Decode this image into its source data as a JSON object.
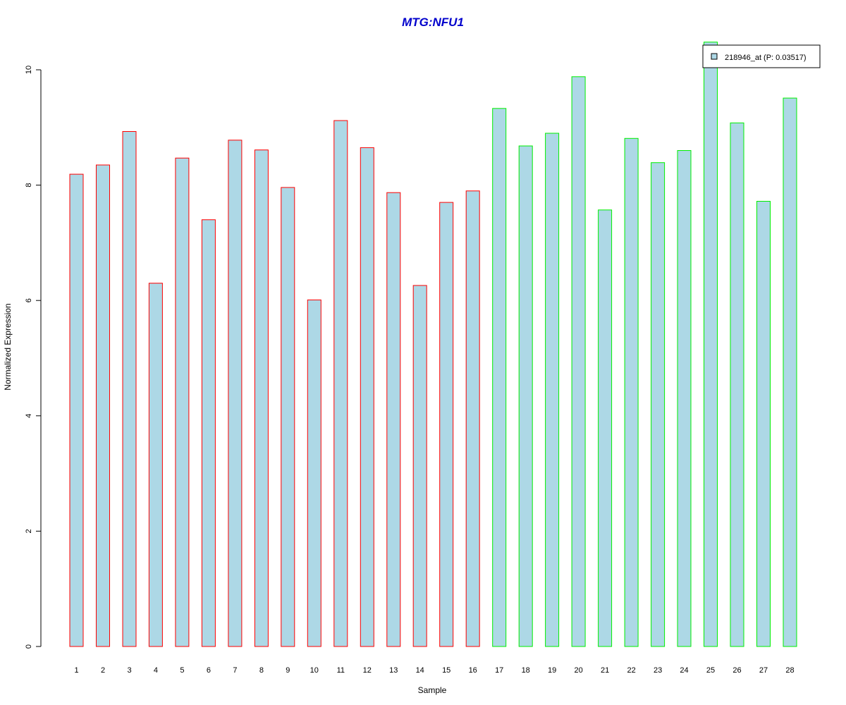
{
  "chart_data": {
    "type": "bar",
    "title": "MTG:NFU1",
    "xlabel": "Sample",
    "ylabel": "Normalized Expression",
    "categories": [
      "1",
      "2",
      "3",
      "4",
      "5",
      "6",
      "7",
      "8",
      "9",
      "10",
      "11",
      "12",
      "13",
      "14",
      "15",
      "16",
      "17",
      "18",
      "19",
      "20",
      "21",
      "22",
      "23",
      "24",
      "25",
      "26",
      "27",
      "28"
    ],
    "values": [
      8.19,
      8.35,
      8.93,
      6.3,
      8.47,
      7.4,
      8.78,
      8.61,
      7.96,
      6.01,
      9.12,
      8.65,
      7.87,
      6.26,
      7.7,
      7.9,
      9.33,
      8.68,
      8.9,
      9.88,
      7.57,
      8.81,
      8.39,
      8.6,
      10.48,
      9.08,
      7.72,
      9.51
    ],
    "groups": [
      1,
      1,
      1,
      1,
      1,
      1,
      1,
      1,
      1,
      1,
      1,
      1,
      1,
      1,
      1,
      1,
      2,
      2,
      2,
      2,
      2,
      2,
      2,
      2,
      2,
      2,
      2,
      2
    ],
    "ylim": [
      0,
      10
    ],
    "yticks": [
      0,
      2,
      4,
      6,
      8,
      10
    ],
    "legend": {
      "entries": [
        "218946_at (P: 0.03517)"
      ],
      "placement": "top-right"
    },
    "grid": false,
    "colors": {
      "title": "#0000cc",
      "bar_fill": "#add8e6",
      "group1_border": "#ff0000",
      "group2_border": "#00ee00",
      "axis": "#000000"
    }
  }
}
